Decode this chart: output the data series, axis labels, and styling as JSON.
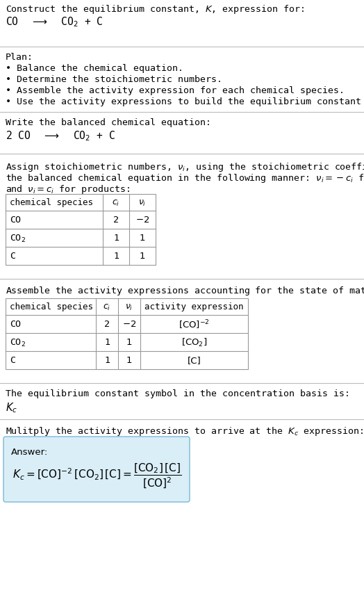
{
  "title_line1": "Construct the equilibrium constant, $K$, expression for:",
  "title_line2": "CO  $\\longrightarrow$  CO$_2$ + C",
  "plan_header": "Plan:",
  "plan_bullets": [
    "• Balance the chemical equation.",
    "• Determine the stoichiometric numbers.",
    "• Assemble the activity expression for each chemical species.",
    "• Use the activity expressions to build the equilibrium constant expression."
  ],
  "balanced_eq_header": "Write the balanced chemical equation:",
  "balanced_eq": "2 CO  $\\longrightarrow$  CO$_2$ + C",
  "stoich_intro_l1": "Assign stoichiometric numbers, $\\nu_i$, using the stoichiometric coefficients, $c_i$, from",
  "stoich_intro_l2": "the balanced chemical equation in the following manner: $\\nu_i = -c_i$ for reactants",
  "stoich_intro_l3": "and $\\nu_i = c_i$ for products:",
  "table1_headers": [
    "chemical species",
    "$c_i$",
    "$\\nu_i$"
  ],
  "table1_rows": [
    [
      "CO",
      "2",
      "$-2$"
    ],
    [
      "CO$_2$",
      "1",
      "1"
    ],
    [
      "C",
      "1",
      "1"
    ]
  ],
  "activity_intro": "Assemble the activity expressions accounting for the state of matter and $\\nu_i$:",
  "table2_headers": [
    "chemical species",
    "$c_i$",
    "$\\nu_i$",
    "activity expression"
  ],
  "table2_rows": [
    [
      "CO",
      "2",
      "$-2$",
      "[CO]$^{-2}$"
    ],
    [
      "CO$_2$",
      "1",
      "1",
      "[CO$_2$]"
    ],
    [
      "C",
      "1",
      "1",
      "[C]"
    ]
  ],
  "kc_intro": "The equilibrium constant symbol in the concentration basis is:",
  "kc_symbol": "$K_c$",
  "multiply_intro": "Mulitply the activity expressions to arrive at the $K_c$ expression:",
  "answer_label": "Answer:",
  "bg_color": "#ffffff",
  "text_color": "#000000",
  "table_line_color": "#999999",
  "divider_color": "#bbbbbb",
  "answer_box_fill": "#daeef7",
  "answer_box_border": "#7ab8d8"
}
